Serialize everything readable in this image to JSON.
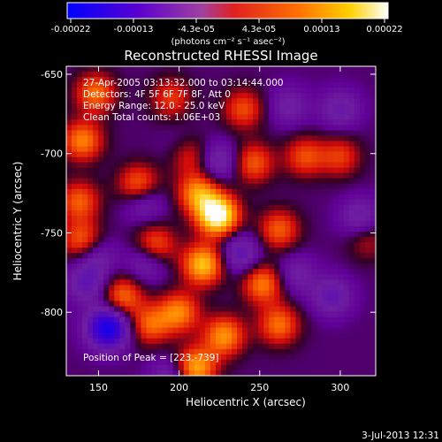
{
  "chart_data": {
    "type": "heatmap",
    "title": "Reconstructed RHESSI Image",
    "xlabel": "Heliocentric X (arcsec)",
    "ylabel": "Heliocentric Y (arcsec)",
    "xlim": [
      130,
      322
    ],
    "ylim": [
      -840,
      -645
    ],
    "x_ticks": [
      "150",
      "200",
      "250",
      "300"
    ],
    "x_tick_values": [
      150,
      200,
      250,
      300
    ],
    "y_ticks": [
      "-650",
      "-700",
      "-750",
      "-800"
    ],
    "y_tick_values": [
      -650,
      -700,
      -750,
      -800
    ],
    "colorbar": {
      "ticks": [
        "-0.00022",
        "-0.00013",
        "-4.3e-05",
        "4.3e-05",
        "0.00013",
        "0.00022"
      ],
      "range": [
        -0.00022,
        0.00022
      ],
      "units": "(photons cm⁻² s⁻¹ asec⁻²)",
      "colors": [
        "#0000ff",
        "#6a00c0",
        "#9a3a9a",
        "#ff3000",
        "#ff9000",
        "#ffffff"
      ]
    },
    "annotations": {
      "time_range": "27-Apr-2005 03:13:32.000 to 03:14:44.000",
      "detectors": "Detectors: 4F 5F 6F 7F 8F, Att 0",
      "energy": "Energy Range: 12.0 - 25.0 keV",
      "method": "Clean    Total counts: 1.06E+03",
      "peak": "Position of Peak = [223,-739]"
    },
    "peak_position": [
      223,
      -739
    ],
    "sources": [
      {
        "x": 224,
        "y": -739,
        "value": 0.00022
      },
      {
        "x": 215,
        "y": -770,
        "value": 0.00016
      },
      {
        "x": 205,
        "y": -700,
        "value": 0.00015
      },
      {
        "x": 212,
        "y": -725,
        "value": 0.00013
      },
      {
        "x": 175,
        "y": -720,
        "value": 0.00012
      },
      {
        "x": 140,
        "y": -692,
        "value": 0.00012
      },
      {
        "x": 140,
        "y": -755,
        "value": 0.00011
      },
      {
        "x": 148,
        "y": -662,
        "value": 0.00011
      },
      {
        "x": 185,
        "y": -758,
        "value": 0.00011
      },
      {
        "x": 200,
        "y": -800,
        "value": 0.00012
      },
      {
        "x": 165,
        "y": -790,
        "value": 0.00011
      },
      {
        "x": 182,
        "y": -808,
        "value": 0.0001
      },
      {
        "x": 228,
        "y": -815,
        "value": 0.00013
      },
      {
        "x": 210,
        "y": -835,
        "value": 0.00015
      },
      {
        "x": 252,
        "y": -782,
        "value": 0.00012
      },
      {
        "x": 262,
        "y": -808,
        "value": 0.00011
      },
      {
        "x": 262,
        "y": -748,
        "value": 0.0001
      },
      {
        "x": 246,
        "y": -706,
        "value": 0.0001
      },
      {
        "x": 278,
        "y": -702,
        "value": 9e-05
      },
      {
        "x": 240,
        "y": -672,
        "value": 9e-05
      },
      {
        "x": 195,
        "y": -665,
        "value": 8e-05
      },
      {
        "x": 300,
        "y": -702,
        "value": 8e-05
      },
      {
        "x": 138,
        "y": -730,
        "value": 0.0001
      },
      {
        "x": 156,
        "y": -810,
        "value": -0.0002
      },
      {
        "x": 203,
        "y": -698,
        "value": -0.0001
      },
      {
        "x": 225,
        "y": -705,
        "value": -8e-05
      },
      {
        "x": 178,
        "y": -730,
        "value": -8e-05
      },
      {
        "x": 238,
        "y": -763,
        "value": -9e-05
      },
      {
        "x": 180,
        "y": -768,
        "value": -8e-05
      },
      {
        "x": 272,
        "y": -776,
        "value": -6e-05
      },
      {
        "x": 148,
        "y": -764,
        "value": -7e-05
      },
      {
        "x": 295,
        "y": -790,
        "value": -8e-05
      },
      {
        "x": 312,
        "y": -740,
        "value": -7e-05
      },
      {
        "x": 268,
        "y": -670,
        "value": -6e-05
      },
      {
        "x": 143,
        "y": -782,
        "value": -8e-05
      },
      {
        "x": 195,
        "y": -840,
        "value": -7e-05
      },
      {
        "x": 300,
        "y": -672,
        "value": -7e-05
      },
      {
        "x": 317,
        "y": -755,
        "value": 5e-05
      }
    ]
  },
  "footer": {
    "timestamp": "3-Jul-2013 12:31"
  }
}
